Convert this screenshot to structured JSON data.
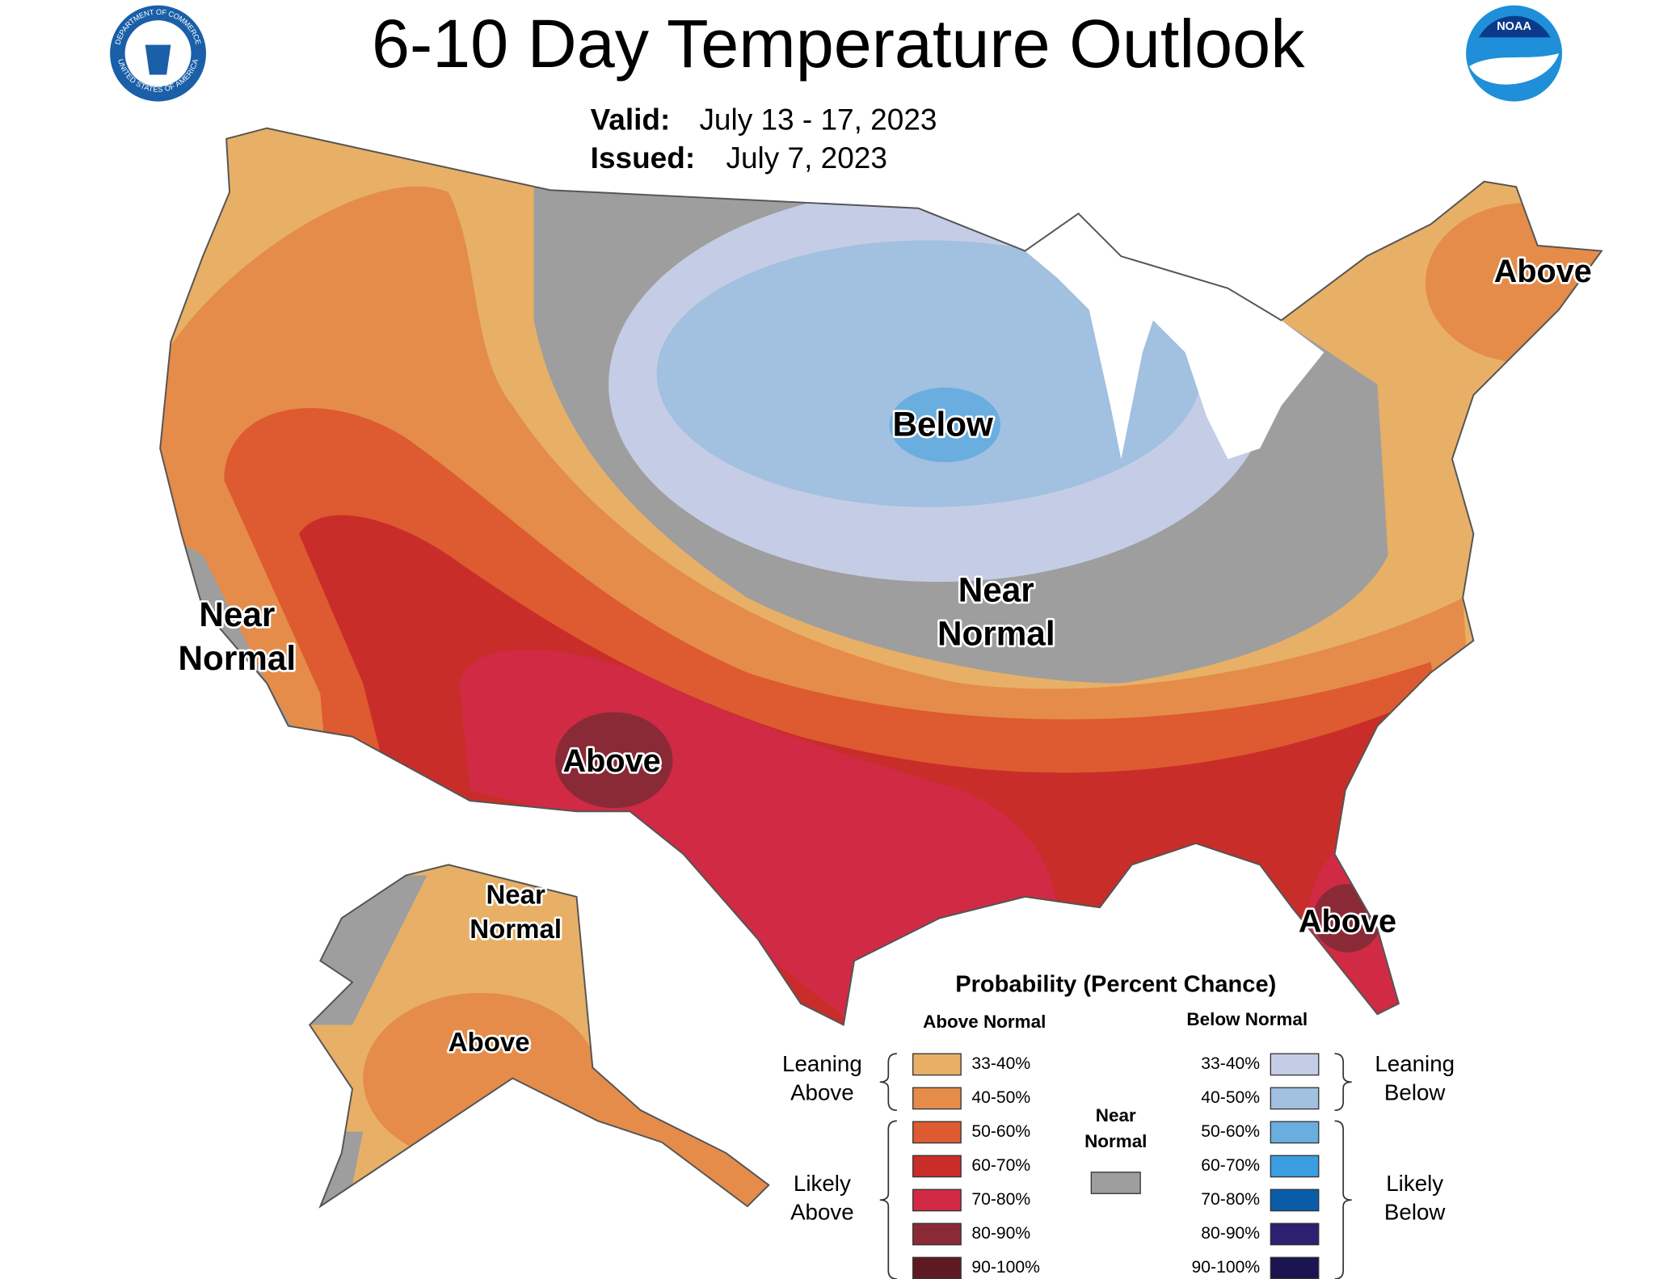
{
  "header": {
    "title": "6-10 Day Temperature Outlook",
    "valid_label": "Valid:",
    "valid": "July 13 - 17, 2023",
    "issued_label": "Issued:",
    "issued": "July 7, 2023"
  },
  "logos": {
    "commerce_top": "DEPARTMENT OF COMMERCE",
    "commerce_bottom": "UNITED STATES OF AMERICA",
    "noaa": "NOAA"
  },
  "map_labels": [
    {
      "lines": [
        "Above"
      ]
    },
    {
      "lines": [
        "Below"
      ]
    },
    {
      "lines": [
        "Near",
        "Normal"
      ]
    },
    {
      "lines": [
        "Near",
        "Normal"
      ]
    },
    {
      "lines": [
        "Above"
      ]
    },
    {
      "lines": [
        "Above"
      ]
    },
    {
      "lines": [
        "Near",
        "Normal"
      ]
    },
    {
      "lines": [
        "Above"
      ]
    }
  ],
  "legend": {
    "title": "Probability (Percent Chance)",
    "above_heading": "Above Normal",
    "below_heading": "Below Normal",
    "near": {
      "lines": [
        "Near",
        "Normal"
      ],
      "color": "#9e9e9e"
    },
    "leaning_above": [
      "Leaning",
      "Above"
    ],
    "likely_above": [
      "Likely",
      "Above"
    ],
    "leaning_below": [
      "Leaning",
      "Below"
    ],
    "likely_below": [
      "Likely",
      "Below"
    ],
    "above_items": [
      {
        "label": "33-40%",
        "color": "#e8b066"
      },
      {
        "label": "40-50%",
        "color": "#e58c4a"
      },
      {
        "label": "50-60%",
        "color": "#de5a30"
      },
      {
        "label": "60-70%",
        "color": "#c92d2a"
      },
      {
        "label": "70-80%",
        "color": "#d02a45"
      },
      {
        "label": "80-90%",
        "color": "#8b2a37"
      },
      {
        "label": "90-100%",
        "color": "#5e1a22"
      }
    ],
    "below_items": [
      {
        "label": "33-40%",
        "color": "#c5cde6"
      },
      {
        "label": "40-50%",
        "color": "#a2c0e0"
      },
      {
        "label": "50-60%",
        "color": "#6aaee0"
      },
      {
        "label": "60-70%",
        "color": "#3a9ee0"
      },
      {
        "label": "70-80%",
        "color": "#0a5ca8"
      },
      {
        "label": "80-90%",
        "color": "#2c2070"
      },
      {
        "label": "90-100%",
        "color": "#1a1550"
      }
    ]
  }
}
